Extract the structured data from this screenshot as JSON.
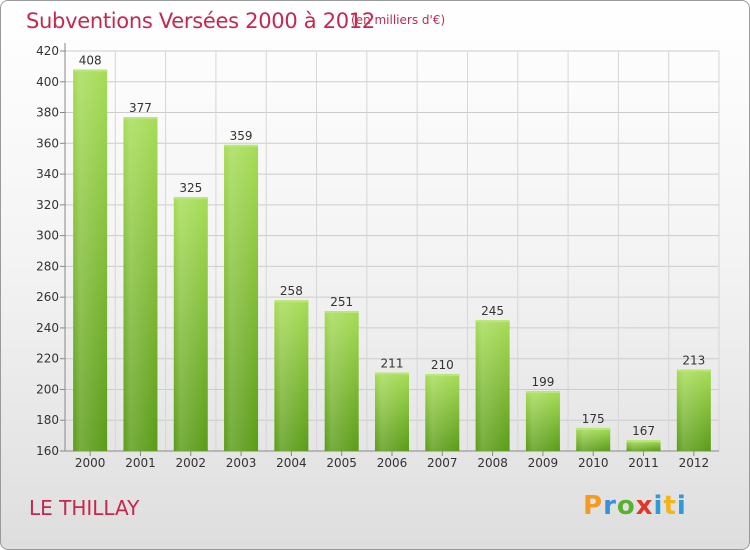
{
  "chart_data": {
    "type": "bar",
    "title": "Subventions Versées 2000 à 2012",
    "subtitle": "(en milliers d'€)",
    "categories": [
      "2000",
      "2001",
      "2002",
      "2003",
      "2004",
      "2005",
      "2006",
      "2007",
      "2008",
      "2009",
      "2010",
      "2011",
      "2012"
    ],
    "values": [
      408,
      377,
      325,
      359,
      258,
      251,
      211,
      210,
      245,
      199,
      175,
      167,
      213
    ],
    "ylim": [
      160,
      420
    ],
    "yticks": [
      160,
      180,
      200,
      220,
      240,
      260,
      280,
      300,
      320,
      340,
      360,
      380,
      400,
      420
    ],
    "grid": true,
    "bar_color_top": "#9fd84e",
    "bar_color_bottom": "#5a9b17"
  },
  "place_name": "LE THILLAY",
  "logo": {
    "letters": [
      "P",
      "r",
      "o",
      "x",
      "i",
      "t",
      "i"
    ],
    "text": "Proxiti"
  },
  "colors": {
    "title": "#c4284f",
    "grid": "#c8c8c8"
  }
}
